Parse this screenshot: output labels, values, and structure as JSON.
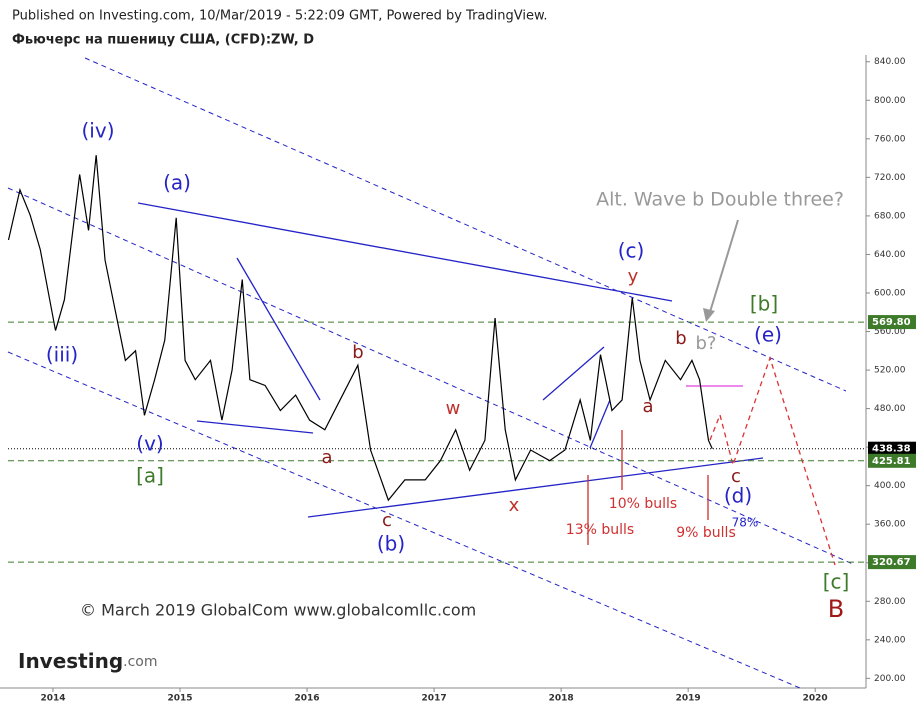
{
  "chart_data": {
    "type": "line",
    "subtitle": "Published on Investing.com, 10/Mar/2019 - 5:22:09 GMT, Powered by TradingView.",
    "title": "Фьючерс на пшеницу США, (CFD):ZW, D",
    "watermark": "© March 2019 GlobalCom www.globalcomllc.com",
    "logo": {
      "name": "Investing",
      "suffix": ".com"
    },
    "x": [
      2013.65,
      2013.74,
      2013.82,
      2013.9,
      2014.02,
      2014.09,
      2014.21,
      2014.28,
      2014.34,
      2014.41,
      2014.49,
      2014.57,
      2014.65,
      2014.72,
      2014.8,
      2014.88,
      2014.97,
      2015.04,
      2015.12,
      2015.24,
      2015.33,
      2015.41,
      2015.49,
      2015.55,
      2015.67,
      2015.79,
      2015.91,
      2016.02,
      2016.14,
      2016.26,
      2016.4,
      2016.5,
      2016.64,
      2016.77,
      2016.93,
      2017.05,
      2017.17,
      2017.28,
      2017.4,
      2017.48,
      2017.56,
      2017.64,
      2017.76,
      2017.91,
      2018.03,
      2018.15,
      2018.23,
      2018.31,
      2018.4,
      2018.48,
      2018.56,
      2018.62,
      2018.7,
      2018.82,
      2018.94,
      2019.03,
      2019.09,
      2019.16,
      2019.19
    ],
    "series": [
      {
        "color": "#000000",
        "values": [
          655,
          707,
          681,
          645,
          561,
          593,
          723,
          665,
          743,
          634,
          582,
          530,
          540,
          473,
          510,
          551,
          678,
          530,
          510,
          530,
          468,
          520,
          614,
          510,
          504,
          478,
          494,
          468,
          458,
          489,
          525,
          437,
          385,
          406,
          406,
          426,
          458,
          416,
          447,
          574,
          458,
          406,
          437,
          426,
          437,
          489,
          447,
          536,
          478,
          489,
          595,
          530,
          489,
          530,
          510,
          530,
          510,
          447,
          438.38
        ]
      }
    ],
    "xlim": [
      2013.646,
      2020.4
    ],
    "xticks": [
      2014,
      2015,
      2016,
      2017,
      2018,
      2019,
      2020
    ],
    "ylim": [
      190,
      847
    ],
    "yticks": [
      {
        "value": 200,
        "label": "200.00"
      },
      {
        "value": 240,
        "label": "240.00"
      },
      {
        "value": 280,
        "label": "280.00"
      },
      {
        "value": 320,
        "label": "320.00"
      },
      {
        "value": 360,
        "label": "360.00"
      },
      {
        "value": 400,
        "label": "400.00"
      },
      {
        "value": 440,
        "label": "440.00"
      },
      {
        "value": 480,
        "label": "480.00"
      },
      {
        "value": 520,
        "label": "520.00"
      },
      {
        "value": 560,
        "label": "560.00"
      },
      {
        "value": 600,
        "label": "600.00"
      },
      {
        "value": 640,
        "label": "640.00"
      },
      {
        "value": 680,
        "label": "680.00"
      },
      {
        "value": 720,
        "label": "720.00"
      },
      {
        "value": 760,
        "label": "760.00"
      },
      {
        "value": 800,
        "label": "800.00"
      },
      {
        "value": 840,
        "label": "840.00"
      }
    ],
    "hlines": [
      {
        "value": 569.8,
        "label": "569.80",
        "color": "#3d7a2a"
      },
      {
        "value": 438.38,
        "label": "438.38",
        "color": "#000000"
      },
      {
        "value": 425.81,
        "label": "425.81",
        "color": "#3d7a2a"
      },
      {
        "value": 320.67,
        "label": "320.67",
        "color": "#3d7a2a"
      }
    ],
    "annotations": [
      {
        "text": "(iv)",
        "color": "#2424c8"
      },
      {
        "text": "(a)",
        "color": "#2424c8"
      },
      {
        "text": "(iii)",
        "color": "#2424c8"
      },
      {
        "text": "(v)",
        "color": "#2424c8"
      },
      {
        "text": "(b)",
        "color": "#2424c8"
      },
      {
        "text": "(c)",
        "color": "#2424c8"
      },
      {
        "text": "(d)",
        "color": "#2424c8"
      },
      {
        "text": "(e)",
        "color": "#2424c8"
      },
      {
        "text": "78%",
        "color": "#2424c8"
      },
      {
        "text": "b",
        "color": "#8b1a1a"
      },
      {
        "text": "a",
        "color": "#8b1a1a"
      },
      {
        "text": "c",
        "color": "#8b1a1a"
      },
      {
        "text": "w",
        "color": "#c0302a"
      },
      {
        "text": "x",
        "color": "#c0302a"
      },
      {
        "text": "y",
        "color": "#c0302a"
      },
      {
        "text": "a",
        "color": "#8b1a1a"
      },
      {
        "text": "b",
        "color": "#8b1a1a"
      },
      {
        "text": "c",
        "color": "#8b1a1a"
      },
      {
        "text": "B",
        "color": "#a01818"
      },
      {
        "text": "13% bulls",
        "color": "#d03030"
      },
      {
        "text": "10% bulls",
        "color": "#d03030"
      },
      {
        "text": "9% bulls",
        "color": "#d03030"
      },
      {
        "text": "Alt. Wave b Double three?",
        "color": "#999999"
      },
      {
        "text": "b?",
        "color": "#999999"
      },
      {
        "text": "[b]",
        "color": "#3d7a2a"
      },
      {
        "text": "[a]",
        "color": "#3d7a2a"
      },
      {
        "text": "[c]",
        "color": "#3d7a2a"
      }
    ]
  }
}
